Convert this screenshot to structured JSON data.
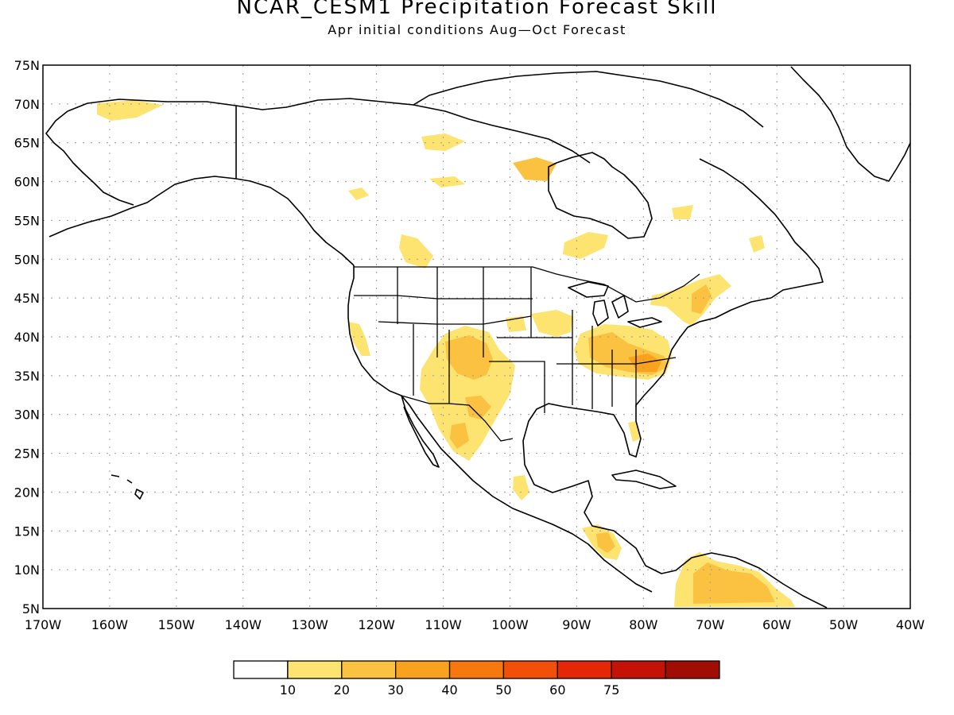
{
  "header": {
    "title": "NCAR_CESM1 Precipitation Forecast Skill",
    "subtitle": "Apr initial conditions  Aug—Oct Forecast"
  },
  "map": {
    "lat_labels": [
      "75N",
      "70N",
      "65N",
      "60N",
      "55N",
      "50N",
      "45N",
      "40N",
      "35N",
      "30N",
      "25N",
      "20N",
      "15N",
      "10N",
      "5N"
    ],
    "lon_labels": [
      "170W",
      "160W",
      "150W",
      "140W",
      "130W",
      "120W",
      "110W",
      "100W",
      "90W",
      "80W",
      "70W",
      "60W",
      "50W",
      "40W"
    ],
    "grid": "dotted",
    "coastline_color": "#000000"
  },
  "colorbar": {
    "bins": [
      {
        "color": "#ffffff"
      },
      {
        "color": "#fde36f",
        "label": "10"
      },
      {
        "color": "#fbc140",
        "label": "20"
      },
      {
        "color": "#f9a21d",
        "label": "30"
      },
      {
        "color": "#f7780e",
        "label": "40"
      },
      {
        "color": "#f24f08",
        "label": "50"
      },
      {
        "color": "#e42707",
        "label": "60"
      },
      {
        "color": "#c41306",
        "label": "75"
      },
      {
        "color": "#a10c05"
      }
    ]
  }
}
